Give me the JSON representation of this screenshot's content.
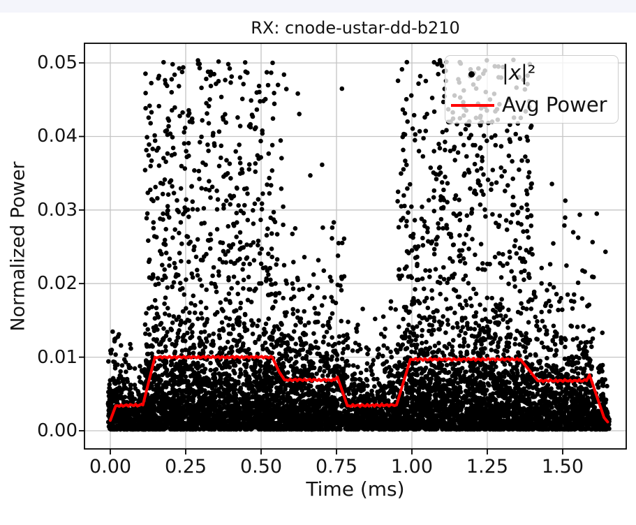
{
  "page": {
    "background_strip_color": "#f4f5fb",
    "background_color": "#ffffff"
  },
  "chart_data": {
    "type": "scatter",
    "title": "RX: cnode-ustar-dd-b210",
    "xlabel": "Time (ms)",
    "ylabel": "Normalized Power",
    "legend_position": "upper right",
    "grid": true,
    "colors": {
      "scatter": "#000000",
      "avg_line": "#ff0000",
      "grid": "#c4c4c4",
      "spine": "#000000",
      "legend_border": "#cccccc"
    },
    "axes": {
      "xlim": [
        -0.08565,
        1.71065
      ],
      "ylim": [
        -0.002467,
        0.052663
      ],
      "x_ticks": {
        "values": [
          0.0,
          0.25,
          0.5,
          0.75,
          1.0,
          1.25,
          1.5
        ],
        "labels": [
          "0.00",
          "0.25",
          "0.50",
          "0.75",
          "1.00",
          "1.25",
          "1.50"
        ]
      },
      "y_ticks": {
        "values": [
          0.0,
          0.01,
          0.02,
          0.03,
          0.04,
          0.05
        ],
        "labels": [
          "0.00",
          "0.01",
          "0.02",
          "0.03",
          "0.04",
          "0.05"
        ]
      }
    },
    "legend": {
      "scatter": {
        "pre": "|",
        "var": "x",
        "post": "|²"
      },
      "line": {
        "label": "Avg Power"
      }
    },
    "series": [
      {
        "name": "|x|^2",
        "kind": "scatter",
        "marker": "dot",
        "color": "#000000",
        "note": "dense noise bursts; envelope generated from segments below",
        "segments": [
          {
            "t0": -0.008,
            "t1": 0.034,
            "n": 170,
            "scale": 0.004,
            "vmax": 0.0135,
            "hf": 0.0,
            "hlo": 0.0,
            "hhi": 0.0
          },
          {
            "t0": 0.034,
            "t1": 0.115,
            "n": 330,
            "scale": 0.0027,
            "vmax": 0.0125,
            "hf": 0.006,
            "hlo": 0.009,
            "hhi": 0.0125
          },
          {
            "t0": 0.115,
            "t1": 0.545,
            "n": 2450,
            "scale": 0.0056,
            "vmax": 0.0205,
            "hf": 0.155,
            "hlo": 0.0205,
            "hhi": 0.0505
          },
          {
            "t0": 0.545,
            "t1": 0.63,
            "n": 430,
            "scale": 0.0052,
            "vmax": 0.02,
            "hf": 0.055,
            "hlo": 0.02,
            "hhi": 0.0485
          },
          {
            "t0": 0.63,
            "t1": 0.752,
            "n": 580,
            "scale": 0.0048,
            "vmax": 0.019,
            "hf": 0.022,
            "hlo": 0.019,
            "hhi": 0.038
          },
          {
            "t0": 0.752,
            "t1": 0.778,
            "n": 100,
            "scale": 0.0045,
            "vmax": 0.019,
            "hf": 0.1,
            "hlo": 0.019,
            "hhi": 0.0265
          },
          {
            "t0": 0.778,
            "t1": 0.952,
            "n": 640,
            "scale": 0.0033,
            "vmax": 0.0165,
            "hf": 0.004,
            "hlo": 0.0165,
            "hhi": 0.021
          },
          {
            "t0": 0.952,
            "t1": 1.4,
            "n": 2550,
            "scale": 0.0056,
            "vmax": 0.0205,
            "hf": 0.155,
            "hlo": 0.0205,
            "hhi": 0.0505
          },
          {
            "t0": 1.4,
            "t1": 1.6,
            "n": 830,
            "scale": 0.0049,
            "vmax": 0.0195,
            "hf": 0.028,
            "hlo": 0.0195,
            "hhi": 0.036
          },
          {
            "t0": 1.6,
            "t1": 1.655,
            "n": 175,
            "scale": 0.0024,
            "vmax": 0.01,
            "hf": 0.01,
            "hlo": 0.012,
            "hhi": 0.0297
          }
        ],
        "outliers": [
          [
            0.768,
            0.0465
          ],
          [
            0.556,
            0.047
          ],
          [
            1.613,
            0.0295
          ]
        ]
      },
      {
        "name": "Avg Power",
        "kind": "line",
        "color": "#ff0000",
        "points": [
          [
            0.0,
            0.0014
          ],
          [
            0.018,
            0.0034
          ],
          [
            0.108,
            0.0035
          ],
          [
            0.148,
            0.01
          ],
          [
            0.537,
            0.01
          ],
          [
            0.56,
            0.008
          ],
          [
            0.578,
            0.0069
          ],
          [
            0.744,
            0.0069
          ],
          [
            0.753,
            0.0073
          ],
          [
            0.786,
            0.0034
          ],
          [
            0.949,
            0.0035
          ],
          [
            0.995,
            0.0097
          ],
          [
            1.36,
            0.0097
          ],
          [
            1.417,
            0.0068
          ],
          [
            1.579,
            0.0068
          ],
          [
            1.589,
            0.0076
          ],
          [
            1.637,
            0.0018
          ],
          [
            1.649,
            0.0012
          ]
        ]
      }
    ]
  }
}
